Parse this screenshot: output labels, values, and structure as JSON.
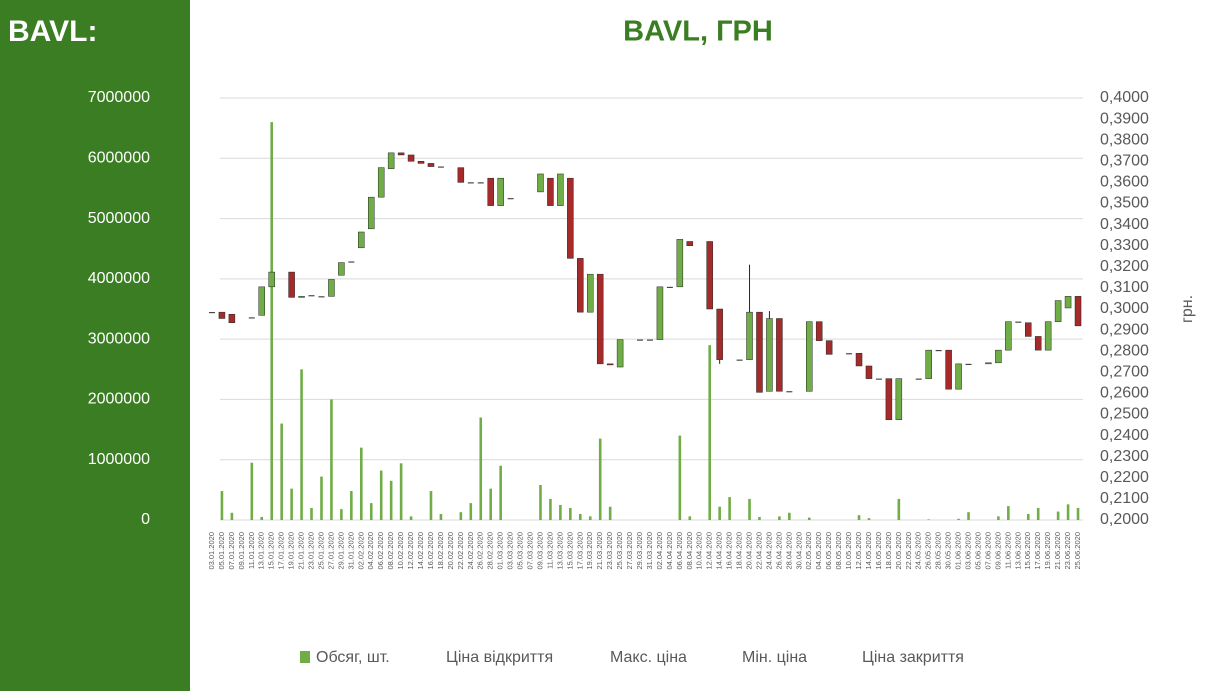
{
  "header": {
    "title": "BAVL:"
  },
  "chart_data": {
    "type": "candlestick-volume",
    "title": "BAVL, ГРН",
    "y2_label": "грн.",
    "categories": [
      "03.01.2020",
      "05.01.2020",
      "07.01.2020",
      "09.01.2020",
      "11.01.2020",
      "13.01.2020",
      "15.01.2020",
      "17.01.2020",
      "19.01.2020",
      "21.01.2020",
      "23.01.2020",
      "25.01.2020",
      "27.01.2020",
      "29.01.2020",
      "31.01.2020",
      "02.02.2020",
      "04.02.2020",
      "06.02.2020",
      "08.02.2020",
      "10.02.2020",
      "12.02.2020",
      "14.02.2020",
      "16.02.2020",
      "18.02.2020",
      "20.02.2020",
      "22.02.2020",
      "24.02.2020",
      "26.02.2020",
      "28.02.2020",
      "01.03.2020",
      "03.03.2020",
      "05.03.2020",
      "07.03.2020",
      "09.03.2020",
      "11.03.2020",
      "13.03.2020",
      "15.03.2020",
      "17.03.2020",
      "19.03.2020",
      "21.03.2020",
      "23.03.2020",
      "25.03.2020",
      "27.03.2020",
      "29.03.2020",
      "31.03.2020",
      "02.04.2020",
      "04.04.2020",
      "06.04.2020",
      "08.04.2020",
      "10.04.2020",
      "12.04.2020",
      "14.04.2020",
      "16.04.2020",
      "18.04.2020",
      "20.04.2020",
      "22.04.2020",
      "24.04.2020",
      "26.04.2020",
      "28.04.2020",
      "30.04.2020",
      "02.05.2020",
      "04.05.2020",
      "06.05.2020",
      "08.05.2020",
      "10.05.2020",
      "12.05.2020",
      "14.05.2020",
      "16.05.2020",
      "18.05.2020",
      "20.05.2020",
      "22.05.2020",
      "24.05.2020",
      "26.05.2020",
      "28.05.2020",
      "30.05.2020",
      "01.06.2020",
      "03.06.2020",
      "05.06.2020",
      "07.06.2020",
      "09.06.2020",
      "11.06.2020",
      "13.06.2020",
      "15.06.2020",
      "17.06.2020",
      "19.06.2020",
      "21.06.2020",
      "23.06.2020",
      "25.06.2020"
    ],
    "series": [
      {
        "name": "Обсяг, шт.",
        "color": "#70ad47",
        "values": [
          0,
          480000,
          120000,
          null,
          950000,
          50000,
          6600000,
          1600000,
          520000,
          2500000,
          200000,
          720000,
          2000000,
          180000,
          480000,
          1200000,
          280000,
          820000,
          650000,
          940000,
          60000,
          0,
          480000,
          100000,
          null,
          130000,
          280000,
          1700000,
          520000,
          900000,
          0,
          null,
          null,
          580000,
          350000,
          250000,
          200000,
          100000,
          60000,
          1350000,
          220000,
          0,
          null,
          0,
          0,
          0,
          0,
          1400000,
          60000,
          null,
          2900000,
          220000,
          380000,
          0,
          350000,
          50000,
          0,
          60000,
          120000,
          null,
          40000,
          0,
          0,
          null,
          0,
          80000,
          30000,
          0,
          0,
          350000,
          null,
          0,
          10000,
          0,
          0,
          20000,
          130000,
          null,
          0,
          60000,
          230000,
          0,
          100000,
          200000,
          0,
          140000,
          260000,
          200000
        ]
      },
      {
        "name": "Ціна відкриття",
        "axis": "y2",
        "values": [
          0.2985,
          0.2985,
          0.2975,
          null,
          0.296,
          0.297,
          0.3105,
          null,
          0.3175,
          0.3055,
          0.3065,
          0.306,
          0.306,
          0.316,
          0.3225,
          0.329,
          0.338,
          0.353,
          0.3665,
          0.374,
          0.373,
          0.37,
          0.369,
          0.3675,
          null,
          0.367,
          0.36,
          0.36,
          0.362,
          0.349,
          0.3525,
          null,
          null,
          0.3555,
          0.362,
          0.349,
          0.362,
          0.324,
          0.2985,
          0.3165,
          0.274,
          0.2725,
          null,
          0.2855,
          0.2855,
          0.2855,
          0.3105,
          0.3105,
          0.332,
          null,
          0.332,
          0.3,
          null,
          0.276,
          0.276,
          0.2985,
          0.261,
          0.2955,
          0.261,
          null,
          0.261,
          0.294,
          0.285,
          null,
          0.279,
          0.279,
          0.273,
          0.267,
          0.267,
          0.2475,
          null,
          0.267,
          0.267,
          0.2805,
          0.2805,
          0.262,
          0.274,
          null,
          0.274,
          0.2745,
          0.2805,
          0.294,
          0.2935,
          0.287,
          0.2805,
          0.294,
          0.3005,
          0.306
        ]
      },
      {
        "name": "Макс. ціна",
        "axis": "y2",
        "values": [
          0.2985,
          0.2985,
          0.2975,
          null,
          0.296,
          0.3105,
          0.3175,
          null,
          0.3175,
          0.306,
          0.3065,
          0.306,
          0.314,
          0.322,
          0.3225,
          0.3365,
          0.353,
          0.367,
          0.374,
          0.374,
          0.373,
          0.37,
          0.369,
          0.3675,
          null,
          0.367,
          0.36,
          0.36,
          0.362,
          0.362,
          0.3525,
          null,
          null,
          0.364,
          0.362,
          0.364,
          0.362,
          0.324,
          0.3165,
          0.3165,
          0.274,
          0.2855,
          null,
          0.2855,
          0.2855,
          0.3105,
          0.3105,
          0.333,
          0.332,
          null,
          0.332,
          0.3,
          null,
          0.276,
          0.321,
          0.2985,
          0.299,
          0.2955,
          0.261,
          null,
          0.294,
          0.294,
          0.285,
          null,
          0.279,
          0.279,
          0.273,
          0.267,
          0.267,
          0.267,
          null,
          0.267,
          0.2805,
          0.2805,
          0.2805,
          0.274,
          0.274,
          null,
          0.2745,
          0.2805,
          0.294,
          0.294,
          0.2935,
          0.287,
          0.294,
          0.304,
          0.306,
          0.306
        ]
      },
      {
        "name": "Мін. ціна",
        "axis": "y2",
        "values": [
          0.2985,
          0.2955,
          0.2935,
          null,
          0.296,
          0.297,
          0.3105,
          null,
          0.3055,
          0.3055,
          0.3065,
          0.306,
          0.306,
          0.316,
          0.3225,
          0.329,
          0.338,
          0.353,
          0.3665,
          0.373,
          0.37,
          0.369,
          0.3675,
          0.3675,
          null,
          0.36,
          0.36,
          0.36,
          0.349,
          0.349,
          0.3525,
          null,
          null,
          0.3555,
          0.349,
          0.349,
          0.324,
          0.2985,
          0.2985,
          0.274,
          0.2735,
          0.2725,
          null,
          0.2855,
          0.2855,
          0.2855,
          0.3105,
          0.3105,
          0.33,
          null,
          0.3,
          0.274,
          null,
          0.276,
          0.276,
          0.2605,
          0.261,
          0.261,
          0.261,
          null,
          0.261,
          0.285,
          0.2785,
          null,
          0.279,
          0.273,
          0.267,
          0.267,
          0.2475,
          0.2475,
          null,
          0.267,
          0.267,
          0.2805,
          0.262,
          0.262,
          0.274,
          null,
          0.274,
          0.2745,
          0.2805,
          0.294,
          0.287,
          0.2805,
          0.2805,
          0.294,
          0.3005,
          0.292
        ]
      },
      {
        "name": "Ціна закриття",
        "axis": "y2",
        "values": [
          0.2985,
          0.2955,
          0.2935,
          null,
          0.296,
          0.3105,
          0.3175,
          null,
          0.3055,
          0.306,
          0.3065,
          0.306,
          0.314,
          0.322,
          0.3225,
          0.3365,
          0.353,
          0.367,
          0.374,
          0.373,
          0.37,
          0.369,
          0.3675,
          0.3675,
          null,
          0.36,
          0.36,
          0.36,
          0.349,
          0.362,
          0.3525,
          null,
          null,
          0.364,
          0.349,
          0.364,
          0.324,
          0.2985,
          0.3165,
          0.274,
          0.2735,
          0.2855,
          null,
          0.2855,
          0.2855,
          0.3105,
          0.3105,
          0.333,
          0.33,
          null,
          0.3,
          0.276,
          null,
          0.276,
          0.2985,
          0.2605,
          0.2955,
          0.261,
          0.261,
          null,
          0.294,
          0.285,
          0.2785,
          null,
          0.279,
          0.273,
          0.267,
          0.267,
          0.2475,
          0.267,
          null,
          0.267,
          0.2805,
          0.2805,
          0.262,
          0.274,
          0.274,
          null,
          0.2745,
          0.2805,
          0.294,
          0.294,
          0.287,
          0.2805,
          0.294,
          0.304,
          0.306,
          0.292
        ]
      }
    ],
    "up_color": "#70ad47",
    "down_color": "#a52a2a",
    "ylim": [
      0,
      7000000
    ],
    "yticks": [
      0,
      1000000,
      2000000,
      3000000,
      4000000,
      5000000,
      6000000,
      7000000
    ],
    "y2lim": [
      0.2,
      0.4
    ],
    "y2ticks": [
      {
        "value": 0.2,
        "label": "0,2000"
      },
      {
        "value": 0.21,
        "label": "0,2100"
      },
      {
        "value": 0.22,
        "label": "0,2200"
      },
      {
        "value": 0.23,
        "label": "0,2300"
      },
      {
        "value": 0.24,
        "label": "0,2400"
      },
      {
        "value": 0.25,
        "label": "0,2500"
      },
      {
        "value": 0.26,
        "label": "0,2600"
      },
      {
        "value": 0.27,
        "label": "0,2700"
      },
      {
        "value": 0.28,
        "label": "0,2800"
      },
      {
        "value": 0.29,
        "label": "0,2900"
      },
      {
        "value": 0.3,
        "label": "0,3000"
      },
      {
        "value": 0.31,
        "label": "0,3100"
      },
      {
        "value": 0.32,
        "label": "0,3200"
      },
      {
        "value": 0.33,
        "label": "0,3300"
      },
      {
        "value": 0.34,
        "label": "0,3400"
      },
      {
        "value": 0.35,
        "label": "0,3500"
      },
      {
        "value": 0.36,
        "label": "0,3600"
      },
      {
        "value": 0.37,
        "label": "0,3700"
      },
      {
        "value": 0.38,
        "label": "0,3800"
      },
      {
        "value": 0.39,
        "label": "0,3900"
      },
      {
        "value": 0.4,
        "label": "0,4000"
      }
    ],
    "grid": true,
    "legend": "bottom"
  }
}
